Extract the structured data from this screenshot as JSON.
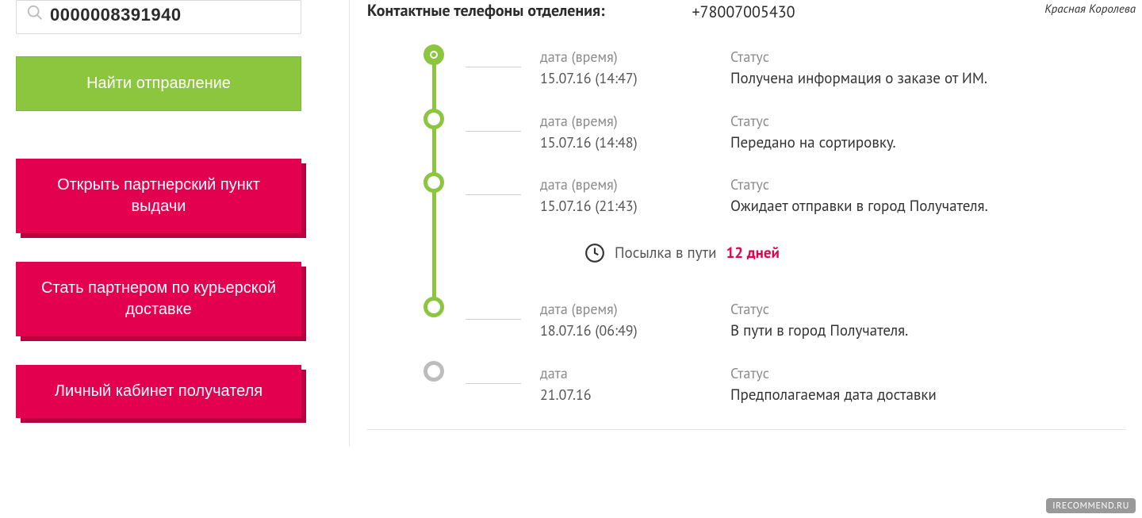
{
  "watermarks": {
    "top": "Красная Королева",
    "bottom": "IRECOMMEND.RU"
  },
  "sidebar": {
    "search_value": "0000008391940",
    "find_button": "Найти отправление",
    "buttons": [
      "Открыть партнерский пункт выдачи",
      "Стать партнером по курьерской доставке",
      "Личный кабинет получателя"
    ]
  },
  "contact": {
    "label": "Контактные телефоны отделения",
    "value": "+78007005430"
  },
  "transit": {
    "prefix": "Посылка в пути",
    "days": "12 дней"
  },
  "timeline": {
    "accent_color": "#8cc63f",
    "gray_color": "#bdbdbd",
    "events": [
      {
        "node": "first",
        "date_label": "дата (время)",
        "date_value": "15.07.16 (14:47)",
        "status_label": "Статус",
        "status_value": "Получена информация о заказе от ИМ."
      },
      {
        "node": "green",
        "date_label": "дата (время)",
        "date_value": "15.07.16 (14:48)",
        "status_label": "Статус",
        "status_value": "Передано на сортировку."
      },
      {
        "node": "green",
        "date_label": "дата (время)",
        "date_value": "15.07.16 (21:43)",
        "status_label": "Статус",
        "status_value": "Ожидает отправки в город Получателя."
      },
      {
        "transit": true
      },
      {
        "node": "green",
        "date_label": "дата (время)",
        "date_value": "18.07.16 (06:49)",
        "status_label": "Статус",
        "status_value": "В пути в город Получателя."
      },
      {
        "node": "gray",
        "date_label": "дата",
        "date_value": "21.07.16",
        "status_label": "Статус",
        "status_value": "Предполагаемая дата доставки"
      }
    ]
  }
}
